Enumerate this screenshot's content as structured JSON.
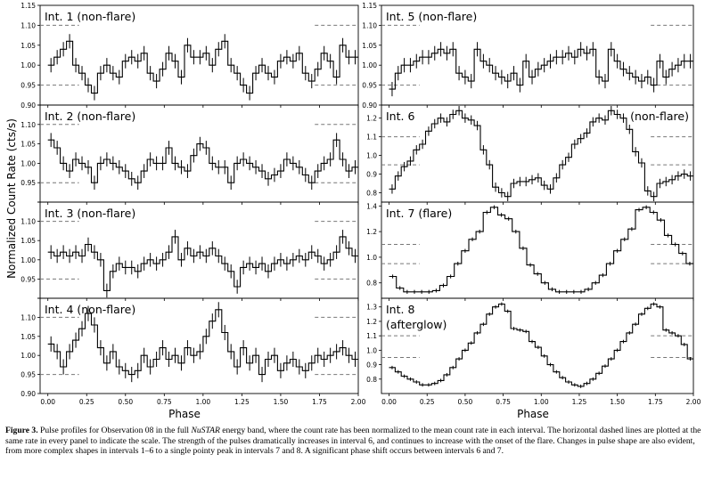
{
  "figure": {
    "ylabel": "Normalized Count Rate (cts/s)",
    "xlabel_left": "Phase",
    "xlabel_right": "Phase"
  },
  "caption": {
    "label": "Figure 3.",
    "part1": " Pulse profiles for Observation 08 in the full ",
    "italic": "NuSTAR",
    "part2": " energy band, where the count rate has been normalized to the mean count rate in each interval. The horizontal dashed lines are plotted at the same rate in every panel to indicate the scale. The strength of the pulses dramatically increases in interval 6, and continues to increase with the onset of the flare. Changes in pulse shape are also evident, from more complex shapes in intervals 1–6 to a single pointy peak in intervals 7 and 8. A significant phase shift occurs between intervals 6 and 7."
  },
  "chart_data": [
    {
      "type": "line",
      "column": "left",
      "row": 0,
      "title": "Int. 1 (non-flare)",
      "xlim": [
        -0.05,
        2.0
      ],
      "ylim": [
        0.9,
        1.15
      ],
      "yticks": [
        "0.90",
        "0.95",
        "1.00",
        "1.05",
        "1.10",
        "1.15"
      ],
      "xticks": [
        "0.00",
        "0.25",
        "0.50",
        "0.75",
        "1.00",
        "1.25",
        "1.50",
        "1.75",
        "2.00"
      ],
      "show_xticklabels": false,
      "dashed_levels": [
        0.95,
        1.1
      ],
      "values": [
        1.0,
        1.02,
        1.04,
        1.06,
        1.0,
        0.98,
        0.95,
        0.93,
        0.98,
        1.0,
        0.98,
        0.97,
        1.01,
        1.02,
        1.01,
        1.03,
        0.98,
        0.96,
        0.99,
        1.03,
        1.01,
        0.97,
        1.05,
        1.02,
        1.02,
        1.03,
        1.0,
        1.04,
        1.06,
        1.0,
        0.98,
        0.95,
        0.93,
        0.98,
        1.0,
        0.98,
        0.97,
        1.01,
        1.02,
        1.01,
        1.03,
        0.98,
        0.96,
        0.99,
        1.03,
        1.01,
        0.97,
        1.05,
        1.02,
        1.02
      ],
      "err": 0.018
    },
    {
      "type": "line",
      "column": "left",
      "row": 1,
      "title": "Int. 2 (non-flare)",
      "xlim": [
        -0.05,
        2.0
      ],
      "ylim": [
        0.9,
        1.15
      ],
      "yticks": [
        "",
        "0.95",
        "1.00",
        "1.05",
        "1.10",
        ""
      ],
      "xticks": [
        "0.00",
        "0.25",
        "0.50",
        "0.75",
        "1.00",
        "1.25",
        "1.50",
        "1.75",
        "2.00"
      ],
      "show_xticklabels": false,
      "dashed_levels": [
        0.95,
        1.1
      ],
      "values": [
        1.06,
        1.04,
        1.0,
        0.98,
        1.01,
        1.0,
        0.99,
        0.95,
        1.0,
        1.01,
        1.0,
        0.99,
        0.98,
        0.96,
        0.95,
        0.98,
        1.01,
        1.0,
        1.0,
        1.04,
        1.0,
        0.99,
        0.98,
        1.02,
        1.05,
        1.04,
        1.0,
        0.99,
        0.99,
        0.95,
        1.0,
        1.01,
        1.0,
        0.99,
        0.98,
        0.96,
        0.97,
        0.98,
        1.01,
        1.0,
        0.99,
        0.97,
        0.95,
        0.98,
        1.0,
        1.01,
        1.06,
        1.01,
        0.98,
        0.99
      ],
      "err": 0.018
    },
    {
      "type": "line",
      "column": "left",
      "row": 2,
      "title": "Int. 3 (non-flare)",
      "xlim": [
        -0.05,
        2.0
      ],
      "ylim": [
        0.9,
        1.15
      ],
      "yticks": [
        "",
        "0.95",
        "1.00",
        "1.05",
        "1.10",
        ""
      ],
      "xticks": [
        "0.00",
        "0.25",
        "0.50",
        "0.75",
        "1.00",
        "1.25",
        "1.50",
        "1.75",
        "2.00"
      ],
      "show_xticklabels": false,
      "dashed_levels": [
        0.95,
        1.1
      ],
      "values": [
        1.02,
        1.01,
        1.02,
        1.01,
        1.02,
        1.01,
        1.04,
        1.02,
        1.0,
        0.92,
        0.97,
        0.99,
        0.98,
        0.98,
        0.97,
        0.99,
        1.0,
        0.99,
        1.0,
        1.02,
        1.06,
        1.0,
        1.03,
        1.01,
        1.02,
        1.01,
        1.03,
        1.01,
        0.99,
        0.97,
        0.93,
        0.98,
        0.99,
        0.98,
        0.99,
        0.97,
        0.99,
        1.0,
        0.99,
        1.0,
        1.01,
        1.0,
        1.02,
        1.01,
        0.99,
        1.0,
        1.02,
        1.06,
        1.03,
        1.01
      ],
      "err": 0.018
    },
    {
      "type": "line",
      "column": "left",
      "row": 3,
      "title": "Int. 4 (non-flare)",
      "xlim": [
        -0.05,
        2.0
      ],
      "ylim": [
        0.9,
        1.15
      ],
      "yticks": [
        "0.90",
        "0.95",
        "1.00",
        "1.05",
        "1.10",
        ""
      ],
      "xticks": [
        "0.00",
        "0.25",
        "0.50",
        "0.75",
        "1.00",
        "1.25",
        "1.50",
        "1.75",
        "2.00"
      ],
      "show_xticklabels": true,
      "dashed_levels": [
        0.95,
        1.1
      ],
      "values": [
        1.03,
        1.01,
        0.97,
        1.01,
        1.04,
        1.07,
        1.11,
        1.08,
        1.02,
        0.98,
        1.01,
        0.97,
        0.96,
        0.95,
        0.96,
        1.0,
        0.97,
        0.99,
        1.02,
        0.99,
        1.0,
        0.98,
        1.02,
        1.0,
        1.01,
        1.05,
        1.09,
        1.12,
        1.06,
        1.01,
        0.97,
        1.02,
        0.98,
        1.0,
        0.95,
        0.99,
        1.0,
        0.96,
        0.98,
        0.99,
        0.97,
        0.96,
        0.98,
        1.0,
        0.99,
        1.0,
        1.01,
        1.02,
        1.0,
        0.99
      ],
      "err": 0.02
    },
    {
      "type": "line",
      "column": "right",
      "row": 0,
      "title": "Int. 5 (non-flare)",
      "xlim": [
        -0.05,
        2.0
      ],
      "ylim": [
        0.9,
        1.15
      ],
      "yticks": [
        "0.90",
        "0.95",
        "1.00",
        "1.05",
        "1.10",
        "1.15"
      ],
      "xticks": [
        "0.00",
        "0.25",
        "0.50",
        "0.75",
        "1.00",
        "1.25",
        "1.50",
        "1.75",
        "2.00"
      ],
      "show_xticklabels": false,
      "dashed_levels": [
        0.95,
        1.1
      ],
      "values": [
        0.94,
        0.98,
        1.0,
        1.0,
        1.01,
        1.02,
        1.02,
        1.03,
        1.04,
        1.03,
        1.04,
        0.98,
        0.97,
        0.96,
        1.04,
        1.01,
        1.0,
        0.98,
        0.97,
        0.96,
        0.98,
        0.95,
        1.01,
        0.97,
        0.99,
        1.0,
        1.01,
        1.02,
        1.02,
        1.03,
        1.02,
        1.04,
        1.03,
        1.04,
        0.97,
        0.96,
        1.04,
        1.01,
        0.99,
        0.98,
        0.97,
        0.96,
        0.97,
        0.95,
        1.01,
        0.97,
        0.99,
        1.0,
        1.01,
        1.01
      ],
      "err": 0.018
    },
    {
      "type": "line",
      "column": "right",
      "row": 1,
      "title": "Int. 6",
      "title2": "(non-flare)",
      "xlim": [
        -0.05,
        2.0
      ],
      "ylim": [
        0.75,
        1.27
      ],
      "yticks": [
        "0.8",
        "0.9",
        "1.0",
        "1.1",
        "1.2"
      ],
      "ytick_values": [
        0.8,
        0.9,
        1.0,
        1.1,
        1.2
      ],
      "xticks": [
        "0.00",
        "0.25",
        "0.50",
        "0.75",
        "1.00",
        "1.25",
        "1.50",
        "1.75",
        "2.00"
      ],
      "show_xticklabels": false,
      "dashed_levels": [
        0.95,
        1.1
      ],
      "values": [
        0.82,
        0.89,
        0.94,
        0.97,
        1.03,
        1.06,
        1.13,
        1.17,
        1.2,
        1.18,
        1.22,
        1.24,
        1.2,
        1.19,
        1.16,
        1.03,
        0.95,
        0.83,
        0.8,
        0.78,
        0.85,
        0.86,
        0.86,
        0.87,
        0.88,
        0.84,
        0.82,
        0.88,
        0.95,
        0.99,
        1.06,
        1.09,
        1.12,
        1.18,
        1.2,
        1.19,
        1.24,
        1.22,
        1.2,
        1.14,
        1.02,
        0.96,
        0.81,
        0.78,
        0.85,
        0.86,
        0.87,
        0.89,
        0.9,
        0.89
      ],
      "err": 0.025
    },
    {
      "type": "line",
      "column": "right",
      "row": 2,
      "title": "Int. 7 (flare)",
      "xlim": [
        -0.05,
        2.0
      ],
      "ylim": [
        0.68,
        1.43
      ],
      "yticks": [
        "0.8",
        "1.0",
        "1.2",
        "1.4"
      ],
      "ytick_values": [
        0.8,
        1.0,
        1.2,
        1.4
      ],
      "xticks": [
        "0.00",
        "0.25",
        "0.50",
        "0.75",
        "1.00",
        "1.25",
        "1.50",
        "1.75",
        "2.00"
      ],
      "show_xticklabels": false,
      "dashed_levels": [
        0.95,
        1.1
      ],
      "values": [
        0.85,
        0.76,
        0.73,
        0.73,
        0.73,
        0.73,
        0.74,
        0.78,
        0.85,
        0.95,
        1.05,
        1.14,
        1.2,
        1.35,
        1.39,
        1.33,
        1.3,
        1.2,
        1.07,
        0.94,
        0.87,
        0.8,
        0.75,
        0.73,
        0.73,
        0.73,
        0.73,
        0.75,
        0.8,
        0.86,
        0.95,
        1.05,
        1.14,
        1.22,
        1.37,
        1.39,
        1.35,
        1.29,
        1.17,
        1.1,
        1.03,
        0.95
      ],
      "err": 0.015
    },
    {
      "type": "line",
      "column": "right",
      "row": 3,
      "title": "Int. 8",
      "title2": "(afterglow)",
      "xlim": [
        -0.05,
        2.0
      ],
      "ylim": [
        0.7,
        1.36
      ],
      "yticks": [
        "0.8",
        "0.9",
        "1.0",
        "1.1",
        "1.2",
        "1.3"
      ],
      "ytick_values": [
        0.8,
        0.9,
        1.0,
        1.1,
        1.2,
        1.3
      ],
      "xticks": [
        "0.00",
        "0.25",
        "0.50",
        "0.75",
        "1.00",
        "1.25",
        "1.50",
        "1.75",
        "2.00"
      ],
      "show_xticklabels": true,
      "dashed_levels": [
        0.95,
        1.1
      ],
      "values": [
        0.88,
        0.85,
        0.82,
        0.8,
        0.78,
        0.76,
        0.76,
        0.77,
        0.79,
        0.83,
        0.88,
        0.94,
        1.0,
        1.05,
        1.12,
        1.18,
        1.25,
        1.3,
        1.32,
        1.27,
        1.15,
        1.14,
        1.13,
        1.06,
        1.02,
        0.96,
        0.9,
        0.85,
        0.81,
        0.78,
        0.76,
        0.75,
        0.77,
        0.8,
        0.84,
        0.89,
        0.94,
        1.0,
        1.06,
        1.12,
        1.18,
        1.25,
        1.29,
        1.32,
        1.3,
        1.14,
        1.12,
        1.1,
        1.04,
        0.94
      ],
      "err": 0.012
    }
  ]
}
